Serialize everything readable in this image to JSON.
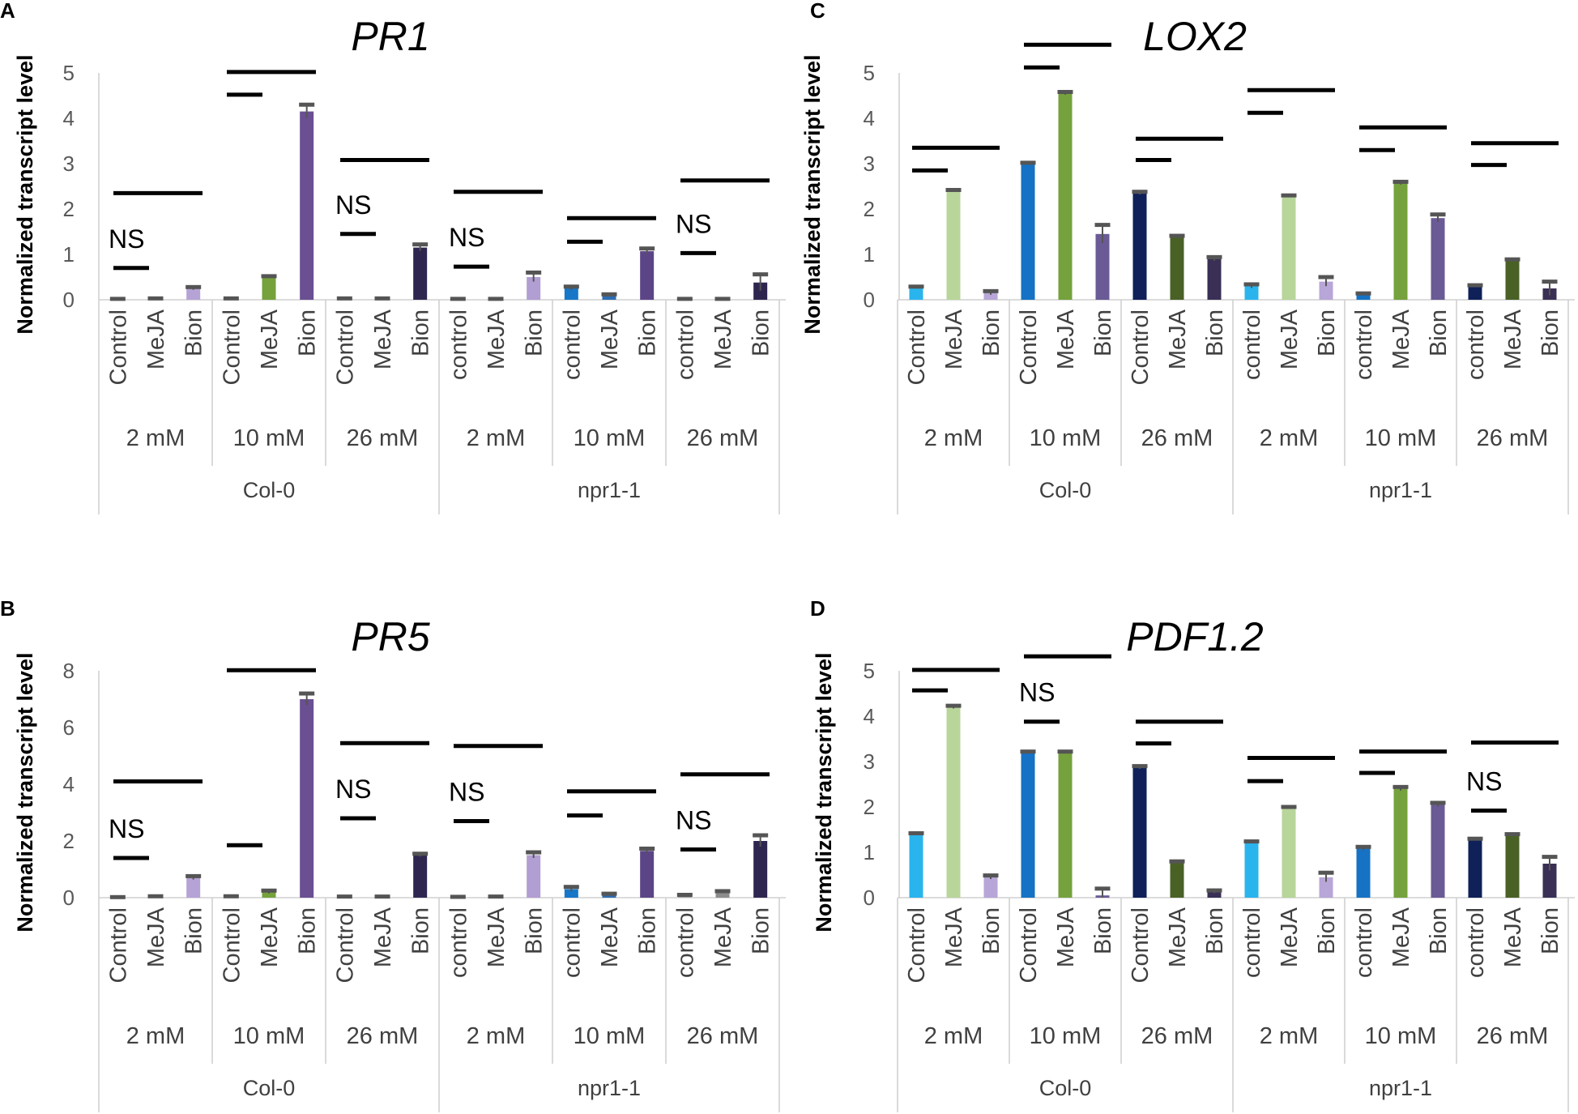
{
  "chart_data": [
    {
      "panel": "A",
      "type": "bar",
      "title": "PR1",
      "ylabel": "Normalized transcript level",
      "ylim": [
        0,
        5
      ],
      "yticks": [
        "0",
        "1",
        "2",
        "3",
        "4",
        "5"
      ],
      "genotypes": [
        "Col-0",
        "npr1-1"
      ],
      "concentrations": [
        "2 mM",
        "10 mM",
        "26 mM",
        "2 mM",
        "10 mM",
        "26 mM"
      ],
      "categories": [
        "Control",
        "MeJA",
        "Bion",
        "Control",
        "MeJA",
        "Bion",
        "Control",
        "MeJA",
        "Bion",
        "control",
        "MeJA",
        "Bion",
        "control",
        "MeJA",
        "Bion",
        "control",
        "MeJA",
        "Bion"
      ],
      "values": [
        0.02,
        0.03,
        0.25,
        0.03,
        0.5,
        4.15,
        0.03,
        0.03,
        1.15,
        0.02,
        0.02,
        0.5,
        0.25,
        0.1,
        1.07,
        0.02,
        0.02,
        0.38
      ],
      "errors": [
        0,
        0,
        0.03,
        0,
        0.02,
        0.15,
        0,
        0,
        0.07,
        0,
        0,
        0.1,
        0.04,
        0.02,
        0.06,
        0,
        0,
        0.18
      ],
      "annotations": [
        {
          "group": 0,
          "short": 0.7,
          "long": 2.35,
          "ns": true
        },
        {
          "group": 1,
          "short": 4.52,
          "long": 5.02,
          "ns": false
        },
        {
          "group": 2,
          "short": 1.45,
          "long": 3.08,
          "ns": true
        },
        {
          "group": 3,
          "short": 0.73,
          "long": 2.38,
          "ns": true
        },
        {
          "group": 4,
          "short": 1.28,
          "long": 1.8,
          "ns": false
        },
        {
          "group": 5,
          "short": 1.03,
          "long": 2.63,
          "ns": true
        }
      ],
      "ns_label": "NS"
    },
    {
      "panel": "B",
      "type": "bar",
      "title": "PR5",
      "ylabel": "Normalized transcript level",
      "ylim": [
        0,
        8
      ],
      "yticks": [
        "0",
        "2",
        "4",
        "6",
        "8"
      ],
      "genotypes": [
        "Col-0",
        "npr1-1"
      ],
      "concentrations": [
        "2 mM",
        "10 mM",
        "26 mM",
        "2 mM",
        "10 mM",
        "26 mM"
      ],
      "categories": [
        "Control",
        "MeJA",
        "Bion",
        "Control",
        "MeJA",
        "Bion",
        "Control",
        "MeJA",
        "Bion",
        "control",
        "MeJA",
        "Bion",
        "control",
        "MeJA",
        "Bion",
        "control",
        "MeJA",
        "Bion"
      ],
      "values": [
        0.02,
        0.05,
        0.7,
        0.05,
        0.2,
        7.0,
        0.04,
        0.04,
        1.5,
        0.03,
        0.04,
        1.5,
        0.3,
        0.12,
        1.65,
        0.08,
        0.2,
        2.0
      ],
      "errors": [
        0,
        0,
        0.06,
        0,
        0.05,
        0.2,
        0,
        0,
        0.05,
        0,
        0,
        0.1,
        0.08,
        0.02,
        0.08,
        0.02,
        0.03,
        0.2
      ],
      "annotations": [
        {
          "group": 0,
          "short": 1.4,
          "long": 4.1,
          "ns": true
        },
        {
          "group": 1,
          "short": 1.85,
          "long": 8.02,
          "ns": false
        },
        {
          "group": 2,
          "short": 2.8,
          "long": 5.45,
          "ns": true
        },
        {
          "group": 3,
          "short": 2.7,
          "long": 5.35,
          "ns": true
        },
        {
          "group": 4,
          "short": 2.9,
          "long": 3.75,
          "ns": false
        },
        {
          "group": 5,
          "short": 1.7,
          "long": 4.35,
          "ns": true
        }
      ],
      "ns_label": "NS"
    },
    {
      "panel": "C",
      "type": "bar",
      "title": "LOX2",
      "ylabel": "Normalized transcript level",
      "ylim": [
        0,
        5
      ],
      "yticks": [
        "0",
        "1",
        "2",
        "3",
        "4",
        "5"
      ],
      "genotypes": [
        "Col-0",
        "npr1-1"
      ],
      "concentrations": [
        "2 mM",
        "10 mM",
        "26 mM",
        "2 mM",
        "10 mM",
        "26 mM"
      ],
      "categories": [
        "Control",
        "MeJA",
        "Bion",
        "Control",
        "MeJA",
        "Bion",
        "Control",
        "MeJA",
        "Bion",
        "control",
        "MeJA",
        "Bion",
        "control",
        "MeJA",
        "Bion",
        "control",
        "MeJA",
        "Bion"
      ],
      "values": [
        0.27,
        2.4,
        0.15,
        3.0,
        4.55,
        1.45,
        2.35,
        1.4,
        0.9,
        0.3,
        2.28,
        0.4,
        0.12,
        2.57,
        1.8,
        0.3,
        0.88,
        0.25
      ],
      "errors": [
        0.02,
        0.02,
        0.04,
        0.02,
        0.03,
        0.2,
        0.03,
        0.01,
        0.04,
        0.04,
        0.02,
        0.1,
        0.02,
        0.03,
        0.08,
        0.02,
        0.01,
        0.15
      ],
      "annotations": [
        {
          "group": 0,
          "short": 2.85,
          "long": 3.35,
          "ns": false
        },
        {
          "group": 1,
          "short": 5.12,
          "long": 5.62,
          "ns": false
        },
        {
          "group": 2,
          "short": 3.08,
          "long": 3.55,
          "ns": false
        },
        {
          "group": 3,
          "short": 4.12,
          "long": 4.62,
          "ns": false
        },
        {
          "group": 4,
          "short": 3.3,
          "long": 3.8,
          "ns": false
        },
        {
          "group": 5,
          "short": 2.97,
          "long": 3.45,
          "ns": false
        }
      ],
      "ns_label": "NS"
    },
    {
      "panel": "D",
      "type": "bar",
      "title": "PDF1.2",
      "ylabel": "Normalized transcript level",
      "ylim": [
        0,
        5
      ],
      "yticks": [
        "0",
        "1",
        "2",
        "3",
        "4",
        "5"
      ],
      "genotypes": [
        "Col-0",
        "npr1-1"
      ],
      "concentrations": [
        "2 mM",
        "10 mM",
        "26 mM",
        "2 mM",
        "10 mM",
        "26 mM"
      ],
      "categories": [
        "Control",
        "MeJA",
        "Bion",
        "Control",
        "MeJA",
        "Bion",
        "Control",
        "MeJA",
        "Bion",
        "control",
        "MeJA",
        "Bion",
        "control",
        "MeJA",
        "Bion",
        "control",
        "MeJA",
        "Bion"
      ],
      "values": [
        1.4,
        4.2,
        0.45,
        3.2,
        3.2,
        0.05,
        2.87,
        0.78,
        0.13,
        1.22,
        1.98,
        0.45,
        1.08,
        2.4,
        2.05,
        1.28,
        1.38,
        0.75
      ],
      "errors": [
        0.02,
        0.03,
        0.04,
        0.02,
        0.02,
        0.15,
        0.03,
        0.02,
        0.03,
        0.02,
        0.02,
        0.1,
        0.04,
        0.04,
        0.04,
        0.02,
        0.02,
        0.15
      ],
      "annotations": [
        {
          "group": 0,
          "short": 4.57,
          "long": 5.02,
          "ns": false
        },
        {
          "group": 1,
          "short": 3.88,
          "long": 5.32,
          "ns": true
        },
        {
          "group": 2,
          "short": 3.4,
          "long": 3.88,
          "ns": false
        },
        {
          "group": 3,
          "short": 2.57,
          "long": 3.08,
          "ns": false
        },
        {
          "group": 4,
          "short": 2.75,
          "long": 3.22,
          "ns": false
        },
        {
          "group": 5,
          "short": 1.92,
          "long": 3.42,
          "ns": true
        }
      ],
      "ns_label": "NS"
    }
  ],
  "colors": {
    "col0": [
      "#a2a2c6",
      "#6f9a2c",
      "#5a4885",
      "#b0a0d0",
      "#75923f",
      "#2c2347"
    ],
    "pr1_col0": [
      [
        "#a6a6a6",
        "#8c8c8c",
        "#b6a3d6"
      ],
      [
        "#a6a6a6",
        "#75a23c",
        "#6a4f93"
      ],
      [
        "#a6a6a6",
        "#8c8c8c",
        "#2f2650"
      ],
      [
        "#a6a6a6",
        "#8c8c8c",
        "#b19ed2"
      ],
      [
        "#1677c9",
        "#2d6db2",
        "#5c4587"
      ],
      [
        "#a6a6a6",
        "#8c8c8c",
        "#2f2650"
      ]
    ],
    "jasmonate": [
      [
        "#2ab4ee",
        "#b8d59a",
        "#b7a6d7"
      ],
      [
        "#1672c4",
        "#75a23c",
        "#6a5a95"
      ],
      [
        "#0f2158",
        "#4a6126",
        "#3a2f55"
      ],
      [
        "#2ab4ee",
        "#b8d59a",
        "#b7a6d7"
      ],
      [
        "#1672c4",
        "#75a23c",
        "#6a5a95"
      ],
      [
        "#0f2158",
        "#4a6126",
        "#3a2f55"
      ]
    ],
    "error_cap": "#555555",
    "axis": "#d0d0d0"
  }
}
